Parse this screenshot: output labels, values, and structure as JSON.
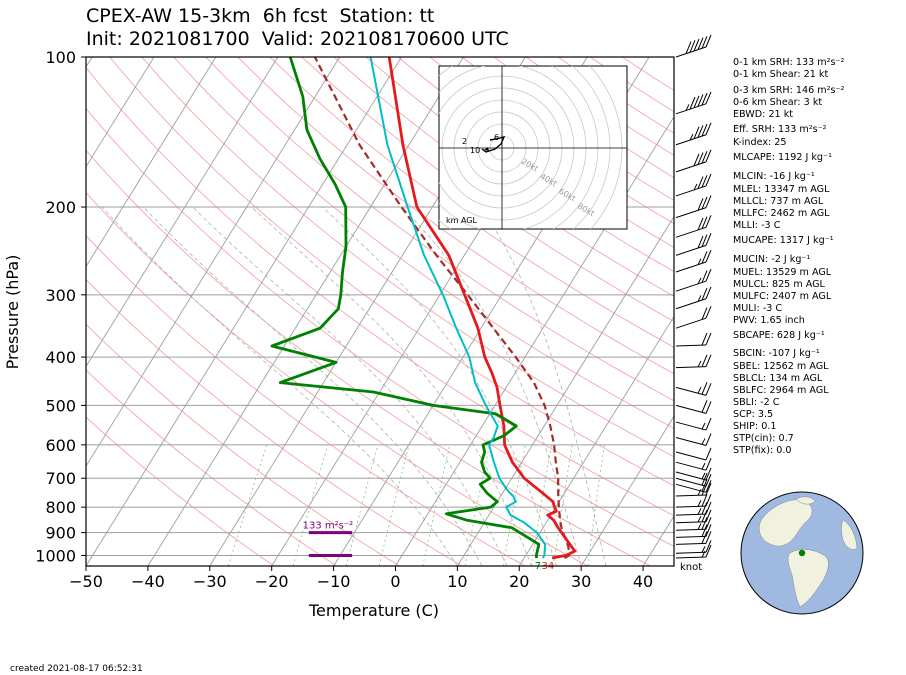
{
  "title": {
    "line1": "CPEX-AW 15-3km  6h fcst  Station: tt",
    "line2": "Init: 2021081700  Valid: 202108170600 UTC"
  },
  "footer": {
    "created": "created 2021-08-17 06:52:31"
  },
  "stats": [
    "0-1 km SRH: 133 m²s⁻²",
    "0-1 km Shear: 21 kt",
    "0-3 km SRH: 146 m²s⁻²",
    "0-6 km Shear: 3 kt",
    "EBWD: 21 kt",
    "Eff. SRH: 133 m²s⁻²",
    "K-index: 25",
    "MLCAPE: 1192 J kg⁻¹",
    "MLCIN: -16 J kg⁻¹",
    "MLEL: 13347 m AGL",
    "MLLCL: 737 m AGL",
    "MLLFC: 2462 m AGL",
    "MLLI: -3 C",
    "MUCAPE: 1317 J kg⁻¹",
    "MUCIN: -2 J kg⁻¹",
    "MUEL: 13529 m AGL",
    "MULCL: 825 m AGL",
    "MULFC: 2407 m AGL",
    "MULI: -3 C",
    "PWV: 1.65 inch",
    "SBCAPE: 628 J kg⁻¹",
    "SBCIN: -107 J kg⁻¹",
    "SBEL: 12562 m AGL",
    "SBLCL: 134 m AGL",
    "SBLFC: 2964 m AGL",
    "SBLI: -2 C",
    "SCP: 3.5",
    "SHIP: 0.1",
    "STP(cin): 0.7",
    "STP(fix): 0.0"
  ],
  "chart_data": {
    "type": "line",
    "xlabel": "Temperature (C)",
    "ylabel": "Pressure (hPa)",
    "xlim": [
      -50,
      45
    ],
    "ylim": [
      1050,
      100
    ],
    "yscale": "log",
    "xticks": [
      -50,
      -40,
      -30,
      -20,
      -10,
      0,
      10,
      20,
      30,
      40
    ],
    "yticks": [
      100,
      200,
      300,
      400,
      500,
      600,
      700,
      800,
      900,
      1000
    ],
    "colors": {
      "temperature": "#e41a1c",
      "dewpoint": "#008000",
      "wetbulb": "#00bfc4",
      "parcel": "#a52a2a",
      "srh": "#800080",
      "isotherm": "#9e9e9e",
      "dry_adiabat": "#f4a6a6",
      "mixing_ratio": "#2ca02c"
    },
    "series": [
      {
        "key": "temperature",
        "values": [
          [
            1012,
            24.5
          ],
          [
            1000,
            26.5
          ],
          [
            980,
            27.5
          ],
          [
            950,
            26
          ],
          [
            900,
            23.5
          ],
          [
            875,
            22.2
          ],
          [
            850,
            21
          ],
          [
            830,
            19.5
          ],
          [
            815,
            20.5
          ],
          [
            800,
            19.8
          ],
          [
            780,
            19
          ],
          [
            750,
            16.5
          ],
          [
            700,
            12
          ],
          [
            650,
            8.5
          ],
          [
            600,
            5.5
          ],
          [
            550,
            3.5
          ],
          [
            500,
            0.8
          ],
          [
            460,
            -1.5
          ],
          [
            430,
            -3.8
          ],
          [
            400,
            -6.5
          ],
          [
            350,
            -10.5
          ],
          [
            300,
            -16
          ],
          [
            250,
            -22.5
          ],
          [
            200,
            -32.5
          ],
          [
            150,
            -41
          ],
          [
            100,
            -52
          ]
        ]
      },
      {
        "key": "dewpoint",
        "values": [
          [
            1012,
            22
          ],
          [
            1000,
            21.7
          ],
          [
            950,
            21
          ],
          [
            920,
            18.5
          ],
          [
            880,
            15
          ],
          [
            850,
            7
          ],
          [
            825,
            3
          ],
          [
            800,
            9.5
          ],
          [
            780,
            10
          ],
          [
            750,
            7.5
          ],
          [
            720,
            5.5
          ],
          [
            700,
            6.5
          ],
          [
            680,
            5
          ],
          [
            650,
            3.5
          ],
          [
            620,
            3
          ],
          [
            600,
            2
          ],
          [
            575,
            4.5
          ],
          [
            550,
            5.5
          ],
          [
            520,
            1
          ],
          [
            500,
            -10
          ],
          [
            470,
            -21
          ],
          [
            450,
            -37
          ],
          [
            410,
            -30
          ],
          [
            380,
            -42
          ],
          [
            350,
            -36
          ],
          [
            320,
            -35
          ],
          [
            300,
            -36
          ],
          [
            270,
            -38
          ],
          [
            240,
            -40
          ],
          [
            200,
            -44
          ],
          [
            180,
            -48
          ],
          [
            160,
            -53
          ],
          [
            140,
            -58
          ],
          [
            120,
            -62
          ],
          [
            100,
            -68
          ]
        ]
      },
      {
        "key": "wetbulb",
        "values": [
          [
            1012,
            23
          ],
          [
            1000,
            23
          ],
          [
            950,
            22
          ],
          [
            900,
            19.5
          ],
          [
            860,
            16.5
          ],
          [
            830,
            13.5
          ],
          [
            800,
            12
          ],
          [
            780,
            13
          ],
          [
            760,
            12
          ],
          [
            740,
            10.5
          ],
          [
            700,
            8
          ],
          [
            650,
            5.5
          ],
          [
            600,
            3
          ],
          [
            580,
            3
          ],
          [
            550,
            2.5
          ],
          [
            500,
            -1.5
          ],
          [
            450,
            -5.5
          ],
          [
            400,
            -9
          ],
          [
            350,
            -14
          ],
          [
            300,
            -19.5
          ],
          [
            250,
            -26.5
          ],
          [
            200,
            -34
          ],
          [
            150,
            -43.5
          ],
          [
            100,
            -55
          ]
        ]
      },
      {
        "key": "parcel",
        "values": [
          [
            1012,
            26.5
          ],
          [
            1000,
            27
          ],
          [
            960,
            26
          ],
          [
            920,
            24.5
          ],
          [
            880,
            23
          ],
          [
            850,
            22
          ],
          [
            800,
            20.5
          ],
          [
            750,
            19
          ],
          [
            700,
            17.5
          ],
          [
            650,
            15.5
          ],
          [
            600,
            13.5
          ],
          [
            550,
            11
          ],
          [
            500,
            8
          ],
          [
            450,
            4
          ],
          [
            400,
            -1.5
          ],
          [
            350,
            -8
          ],
          [
            300,
            -15.5
          ],
          [
            250,
            -24.5
          ],
          [
            200,
            -35
          ],
          [
            150,
            -48
          ],
          [
            100,
            -64
          ]
        ]
      }
    ],
    "isotherms": [
      -170,
      -160,
      -150,
      -140,
      -130,
      -120,
      -110,
      -100,
      -90,
      -80,
      -70,
      -60,
      -50,
      -40,
      -30,
      -20,
      -10,
      0,
      10,
      20,
      30,
      40
    ],
    "dry_adiabats_theta_k": [
      250,
      260,
      270,
      280,
      290,
      300,
      310,
      320,
      330,
      340,
      350,
      360,
      370,
      380,
      390,
      400,
      410,
      420,
      430,
      440,
      450,
      460,
      470,
      480,
      490,
      500
    ],
    "mixing_ratios_g_kg": [
      0.4,
      1,
      2,
      3,
      5,
      8,
      12,
      16,
      20,
      28
    ],
    "srh_annotation": {
      "label": "133 m²s⁻²",
      "bars_hpa": [
        900,
        1000
      ],
      "x": [
        -14,
        -7
      ]
    },
    "surface_labels": {
      "lcl_mark": "7",
      "value": "34"
    },
    "barb_units_label": "knot",
    "barbs": [
      {
        "p": 100,
        "spd": 60,
        "dir": "NE"
      },
      {
        "p": 130,
        "spd": 55,
        "dir": "NE"
      },
      {
        "p": 150,
        "spd": 45,
        "dir": "NE"
      },
      {
        "p": 170,
        "spd": 40,
        "dir": "NE"
      },
      {
        "p": 190,
        "spd": 35,
        "dir": "NE"
      },
      {
        "p": 210,
        "spd": 30,
        "dir": "NE"
      },
      {
        "p": 230,
        "spd": 30,
        "dir": "NE"
      },
      {
        "p": 250,
        "spd": 30,
        "dir": "NE"
      },
      {
        "p": 270,
        "spd": 25,
        "dir": "NE"
      },
      {
        "p": 295,
        "spd": 25,
        "dir": "NE"
      },
      {
        "p": 320,
        "spd": 25,
        "dir": "NE"
      },
      {
        "p": 350,
        "spd": 20,
        "dir": "NE"
      },
      {
        "p": 380,
        "spd": 20,
        "dir": "E"
      },
      {
        "p": 420,
        "spd": 25,
        "dir": "E"
      },
      {
        "p": 460,
        "spd": 25,
        "dir": "SE"
      },
      {
        "p": 500,
        "spd": 20,
        "dir": "SE"
      },
      {
        "p": 540,
        "spd": 15,
        "dir": "SE"
      },
      {
        "p": 580,
        "spd": 15,
        "dir": "SE"
      },
      {
        "p": 620,
        "spd": 10,
        "dir": "SE"
      },
      {
        "p": 650,
        "spd": 15,
        "dir": "SE"
      },
      {
        "p": 680,
        "spd": 15,
        "dir": "SE"
      },
      {
        "p": 700,
        "spd": 20,
        "dir": "SE"
      },
      {
        "p": 720,
        "spd": 20,
        "dir": "SE"
      },
      {
        "p": 760,
        "spd": 25,
        "dir": "E"
      },
      {
        "p": 800,
        "spd": 25,
        "dir": "E"
      },
      {
        "p": 830,
        "spd": 25,
        "dir": "E"
      },
      {
        "p": 860,
        "spd": 25,
        "dir": "E"
      },
      {
        "p": 890,
        "spd": 25,
        "dir": "E"
      },
      {
        "p": 920,
        "spd": 20,
        "dir": "E"
      },
      {
        "p": 950,
        "spd": 20,
        "dir": "E"
      },
      {
        "p": 990,
        "spd": 15,
        "dir": "E"
      },
      {
        "p": 1012,
        "spd": 15,
        "dir": "E"
      }
    ],
    "hodograph": {
      "ring_labels": [
        "20kt",
        "40kt",
        "60kt",
        "80kt"
      ],
      "height_labels": [
        "2",
        "6",
        "10"
      ],
      "note": "km AGL"
    }
  }
}
